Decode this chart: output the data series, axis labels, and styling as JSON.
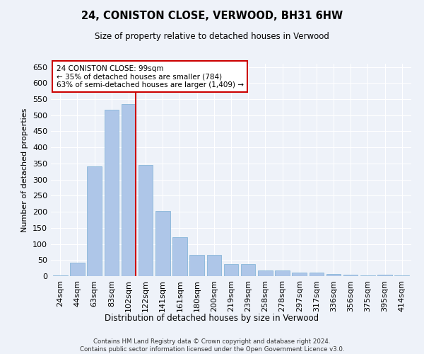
{
  "title": "24, CONISTON CLOSE, VERWOOD, BH31 6HW",
  "subtitle": "Size of property relative to detached houses in Verwood",
  "xlabel": "Distribution of detached houses by size in Verwood",
  "ylabel": "Number of detached properties",
  "categories": [
    "24sqm",
    "44sqm",
    "63sqm",
    "83sqm",
    "102sqm",
    "122sqm",
    "141sqm",
    "161sqm",
    "180sqm",
    "200sqm",
    "219sqm",
    "239sqm",
    "258sqm",
    "278sqm",
    "297sqm",
    "317sqm",
    "336sqm",
    "356sqm",
    "375sqm",
    "395sqm",
    "414sqm"
  ],
  "values": [
    3,
    42,
    340,
    518,
    535,
    345,
    203,
    120,
    65,
    65,
    38,
    38,
    17,
    17,
    12,
    10,
    6,
    5,
    2,
    5,
    3
  ],
  "bar_color": "#aec6e8",
  "bar_edge_color": "#7bafd4",
  "vline_index": 4,
  "annotation_line1": "24 CONISTON CLOSE: 99sqm",
  "annotation_line2": "← 35% of detached houses are smaller (784)",
  "annotation_line3": "63% of semi-detached houses are larger (1,409) →",
  "annotation_box_facecolor": "#ffffff",
  "annotation_box_edgecolor": "#cc0000",
  "vline_color": "#cc0000",
  "background_color": "#eef2f9",
  "grid_color": "#ffffff",
  "yticks": [
    0,
    50,
    100,
    150,
    200,
    250,
    300,
    350,
    400,
    450,
    500,
    550,
    600,
    650
  ],
  "ylim": [
    0,
    660
  ],
  "footer1": "Contains HM Land Registry data © Crown copyright and database right 2024.",
  "footer2": "Contains public sector information licensed under the Open Government Licence v3.0."
}
